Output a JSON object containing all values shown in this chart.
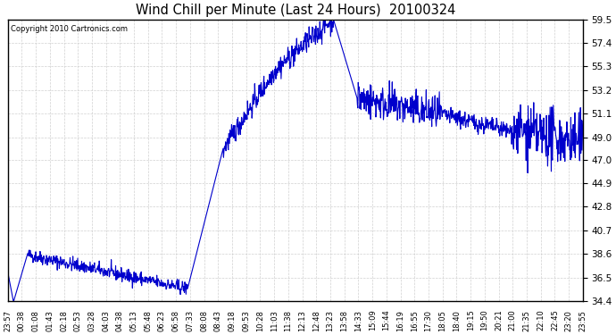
{
  "title": "Wind Chill per Minute (Last 24 Hours)  20100324",
  "copyright": "Copyright 2010 Cartronics.com",
  "line_color": "#0000cc",
  "bg_color": "#ffffff",
  "plot_bg_color": "#ffffff",
  "grid_color": "#cccccc",
  "ylim": [
    34.4,
    59.5
  ],
  "yticks": [
    34.4,
    36.5,
    38.6,
    40.7,
    42.8,
    44.9,
    47.0,
    49.0,
    51.1,
    53.2,
    55.3,
    57.4,
    59.5
  ],
  "xtick_labels": [
    "23:57",
    "00:38",
    "01:08",
    "01:43",
    "02:18",
    "02:53",
    "03:28",
    "04:03",
    "04:38",
    "05:13",
    "05:48",
    "06:23",
    "06:58",
    "07:33",
    "08:08",
    "08:43",
    "09:18",
    "09:53",
    "10:28",
    "11:03",
    "11:38",
    "12:13",
    "12:48",
    "13:23",
    "13:58",
    "14:33",
    "15:09",
    "15:44",
    "16:19",
    "16:55",
    "17:30",
    "18:05",
    "18:40",
    "19:15",
    "19:50",
    "20:21",
    "21:00",
    "21:35",
    "22:10",
    "22:45",
    "23:20",
    "23:55"
  ]
}
